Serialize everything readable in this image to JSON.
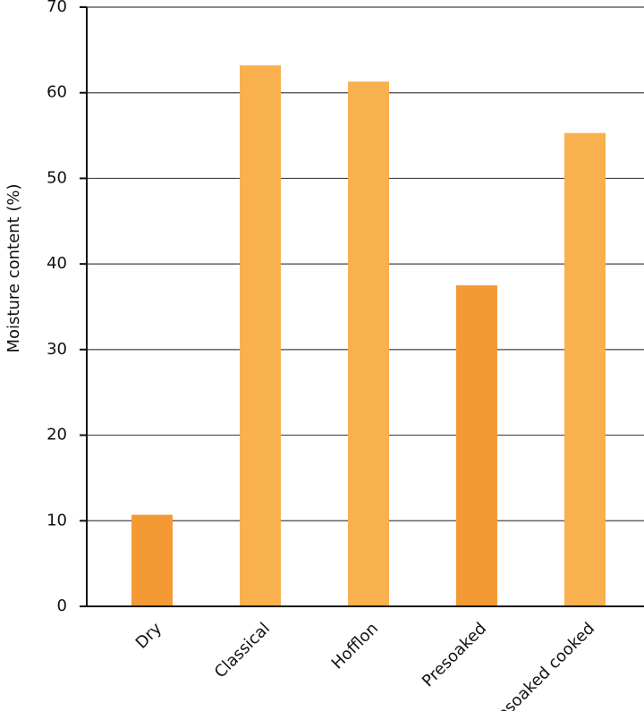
{
  "chart_data": {
    "type": "bar",
    "y_label": "Moisture content (%)",
    "categories": [
      "Dry",
      "Classical",
      "Hofflon",
      "Presoaked",
      "Presoaked cooked"
    ],
    "values": [
      10.7,
      63.2,
      61.3,
      37.5,
      55.3
    ],
    "colors": [
      "#f39a35",
      "#f9b04e",
      "#f9b04e",
      "#f39a35",
      "#f9b04e"
    ],
    "ylim": [
      0,
      70
    ],
    "yticks": [
      0,
      10,
      20,
      30,
      40,
      50,
      60,
      70
    ],
    "grid": true
  }
}
